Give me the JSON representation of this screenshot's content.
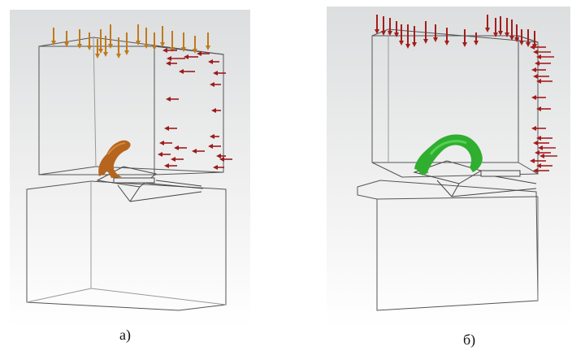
{
  "panels": [
    {
      "id": "a",
      "caption": "а)",
      "solid_color": "#b5651d",
      "solid_highlight": "#d78a3a",
      "top_arrow_color": "#c07a1a",
      "side_arrow_color": "#9b1b1b",
      "background": "#e9eaeb"
    },
    {
      "id": "b",
      "caption": "б)",
      "solid_color": "#2fae2f",
      "solid_highlight": "#55d155",
      "top_arrow_color": "#a51c1c",
      "side_arrow_color": "#a51c1c",
      "background": "#e9eaeb"
    }
  ]
}
